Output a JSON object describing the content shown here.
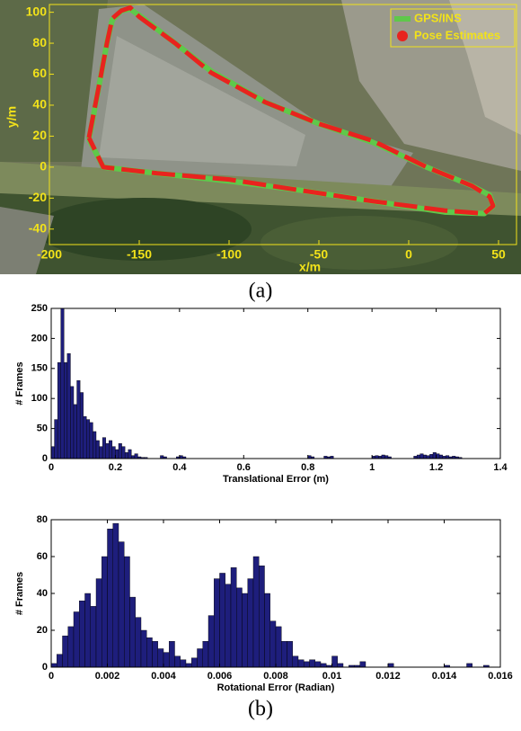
{
  "chart_data": [
    {
      "type": "line",
      "xlabel": "x/m",
      "ylabel": "y/m",
      "caption": "(a)",
      "x": [
        -178,
        -176,
        -172,
        -168,
        -165,
        -160,
        -155,
        -150,
        -130,
        -110,
        -80,
        -50,
        -20,
        10,
        35,
        45,
        47,
        42,
        20,
        -20,
        -60,
        -100,
        -140,
        -170,
        -178
      ],
      "series": [
        {
          "name": "GPS/INS",
          "color": "#5fc84a",
          "values": [
            18,
            30,
            55,
            80,
            95,
            101,
            102,
            98,
            80,
            62,
            42,
            28,
            16,
            0,
            -12,
            -18,
            -25,
            -30,
            -29,
            -22,
            -15,
            -9,
            -4,
            0,
            18
          ]
        },
        {
          "name": "Pose Estimates",
          "color": "#e8231e",
          "values": [
            19,
            31,
            55,
            80,
            96,
            101,
            103,
            97,
            80,
            61,
            42,
            28,
            17,
            0,
            -12,
            -19,
            -25,
            -30,
            -28,
            -22,
            -15,
            -8,
            -4,
            0,
            19
          ]
        }
      ],
      "xlim": [
        -200,
        60
      ],
      "xticks": [
        -200,
        -150,
        -100,
        -50,
        0,
        50
      ],
      "ylim": [
        -50,
        105
      ],
      "yticks": [
        -40,
        -20,
        0,
        20,
        40,
        60,
        80,
        100
      ],
      "legend": "top-right",
      "tick_color": "#f2e21a"
    },
    {
      "type": "histogram",
      "xlabel": "Translational Error (m)",
      "ylabel": "# Frames",
      "color": "#1e1e7c",
      "bins": [
        0,
        0.01,
        0.02,
        0.03,
        0.04,
        0.05,
        0.06,
        0.07,
        0.08,
        0.09,
        0.1,
        0.11,
        0.12,
        0.13,
        0.14,
        0.15,
        0.16,
        0.17,
        0.18,
        0.19,
        0.2,
        0.21,
        0.22,
        0.23,
        0.24,
        0.25,
        0.26,
        0.27,
        0.28,
        0.29,
        0.3,
        0.31,
        0.32,
        0.33,
        0.34,
        0.35,
        0.36,
        0.37,
        0.38,
        0.39,
        0.4,
        0.41,
        0.42,
        0.43,
        0.44,
        0.45,
        0.46,
        0.47,
        0.48,
        0.49,
        0.5,
        0.51,
        0.52,
        0.53,
        0.54,
        0.55,
        0.56,
        0.57,
        0.58,
        0.59,
        0.6,
        0.61,
        0.62,
        0.63,
        0.64,
        0.65,
        0.66,
        0.67,
        0.68,
        0.69,
        0.7,
        0.71,
        0.72,
        0.73,
        0.74,
        0.75,
        0.76,
        0.77,
        0.78,
        0.79,
        0.8,
        0.81,
        0.82,
        0.83,
        0.84,
        0.85,
        0.86,
        0.87,
        0.88,
        0.89,
        0.9,
        0.91,
        0.92,
        0.93,
        0.94,
        0.95,
        0.96,
        0.97,
        0.98,
        0.99,
        1,
        1.01,
        1.02,
        1.03,
        1.04,
        1.05,
        1.06,
        1.07,
        1.08,
        1.09,
        1.1,
        1.11,
        1.12,
        1.13,
        1.14,
        1.15,
        1.16,
        1.17,
        1.18,
        1.19,
        1.2,
        1.21,
        1.22,
        1.23,
        1.24,
        1.25,
        1.26,
        1.27,
        1.28
      ],
      "values": [
        20,
        65,
        160,
        250,
        160,
        175,
        120,
        90,
        130,
        110,
        70,
        65,
        60,
        45,
        30,
        20,
        35,
        25,
        30,
        20,
        15,
        25,
        20,
        10,
        15,
        5,
        8,
        3,
        2,
        2,
        0,
        0,
        0,
        0,
        5,
        3,
        0,
        0,
        0,
        3,
        5,
        3,
        0,
        0,
        0,
        0,
        0,
        0,
        0,
        0,
        0,
        0,
        0,
        0,
        0,
        0,
        0,
        0,
        0,
        0,
        0,
        0,
        0,
        0,
        0,
        0,
        0,
        0,
        0,
        0,
        0,
        0,
        0,
        0,
        0,
        0,
        0,
        0,
        0,
        0,
        5,
        3,
        0,
        0,
        0,
        4,
        3,
        4,
        0,
        0,
        0,
        0,
        0,
        0,
        0,
        0,
        0,
        0,
        0,
        0,
        4,
        5,
        4,
        6,
        5,
        3,
        0,
        0,
        0,
        0,
        0,
        0,
        0,
        4,
        6,
        8,
        6,
        5,
        7,
        10,
        8,
        6,
        4,
        5,
        3,
        4,
        3,
        2
      ],
      "xlim": [
        0,
        1.4
      ],
      "xticks": [
        0,
        0.2,
        0.4,
        0.6,
        0.8,
        1,
        1.2,
        1.4
      ],
      "ylim": [
        0,
        250
      ],
      "yticks": [
        0,
        50,
        100,
        150,
        200,
        250
      ]
    },
    {
      "type": "histogram",
      "xlabel": "Rotational Error (Radian)",
      "ylabel": "# Frames",
      "color": "#1e1e7c",
      "caption": "(b)",
      "bins": [
        0,
        0.0002,
        0.0004,
        0.0006,
        0.0008,
        0.001,
        0.0012,
        0.0014,
        0.0016,
        0.0018,
        0.002,
        0.0022,
        0.0024,
        0.0026,
        0.0028,
        0.003,
        0.0032,
        0.0034,
        0.0036,
        0.0038,
        0.004,
        0.0042,
        0.0044,
        0.0046,
        0.0048,
        0.005,
        0.0052,
        0.0054,
        0.0056,
        0.0058,
        0.006,
        0.0062,
        0.0064,
        0.0066,
        0.0068,
        0.007,
        0.0072,
        0.0074,
        0.0076,
        0.0078,
        0.008,
        0.0082,
        0.0084,
        0.0086,
        0.0088,
        0.009,
        0.0092,
        0.0094,
        0.0096,
        0.0098,
        0.01,
        0.0102,
        0.0104,
        0.0106,
        0.0108,
        0.011,
        0.0112,
        0.0114,
        0.0116,
        0.0118,
        0.012,
        0.0122,
        0.0124,
        0.0126,
        0.0128,
        0.013,
        0.0132,
        0.0134,
        0.0136,
        0.0138,
        0.014,
        0.0142,
        0.0144,
        0.0146,
        0.0148,
        0.015,
        0.0152,
        0.0154,
        0.0156
      ],
      "values": [
        2,
        7,
        17,
        22,
        30,
        36,
        40,
        33,
        48,
        60,
        75,
        78,
        68,
        60,
        38,
        27,
        20,
        16,
        14,
        10,
        8,
        14,
        6,
        4,
        2,
        5,
        10,
        14,
        28,
        48,
        51,
        45,
        54,
        43,
        40,
        48,
        60,
        55,
        40,
        25,
        22,
        14,
        14,
        6,
        4,
        3,
        4,
        3,
        2,
        1,
        6,
        2,
        0,
        1,
        1,
        3,
        0,
        0,
        0,
        0,
        2,
        0,
        0,
        0,
        0,
        0,
        0,
        0,
        0,
        0,
        1,
        0,
        0,
        0,
        2,
        0,
        0,
        1
      ],
      "xlim": [
        0,
        0.016
      ],
      "xticks": [
        0,
        0.002,
        0.004,
        0.006,
        0.008,
        0.01,
        0.012,
        0.014,
        0.016
      ],
      "ylim": [
        0,
        80
      ],
      "yticks": [
        0,
        20,
        40,
        60,
        80
      ]
    }
  ]
}
